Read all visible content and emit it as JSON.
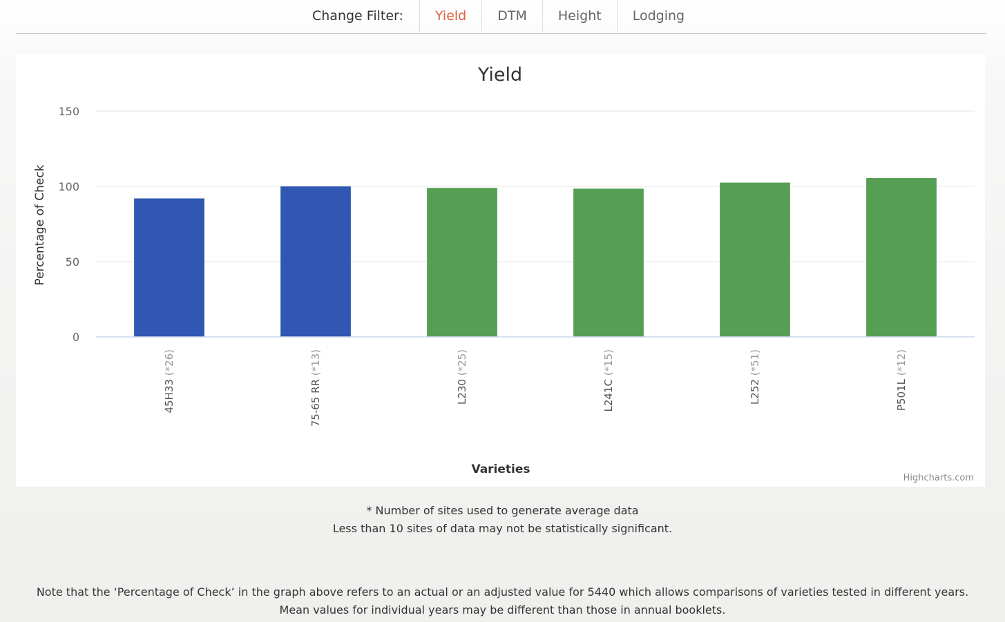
{
  "filter": {
    "label": "Change Filter:",
    "tabs": [
      {
        "label": "Yield",
        "active": true
      },
      {
        "label": "DTM",
        "active": false
      },
      {
        "label": "Height",
        "active": false
      },
      {
        "label": "Lodging",
        "active": false
      }
    ],
    "active_color": "#e0603f"
  },
  "chart_data": {
    "type": "bar",
    "title": "Yield",
    "xlabel": "Varieties",
    "ylabel": "Percentage of Check",
    "ylim": [
      0,
      150
    ],
    "yticks": [
      0,
      50,
      100,
      150
    ],
    "grid": true,
    "legend": "none",
    "categories": [
      {
        "name": "45H33",
        "sites": "(*26)",
        "value": 92,
        "color": "#3058b3"
      },
      {
        "name": "75-65 RR",
        "sites": "(*13)",
        "value": 100,
        "color": "#3058b3"
      },
      {
        "name": "L230",
        "sites": "(*25)",
        "value": 99,
        "color": "#559e53"
      },
      {
        "name": "L241C",
        "sites": "(*15)",
        "value": 98.5,
        "color": "#559e53"
      },
      {
        "name": "L252",
        "sites": "(*51)",
        "value": 102.5,
        "color": "#559e53"
      },
      {
        "name": "P501L",
        "sites": "(*12)",
        "value": 105.5,
        "color": "#559e53"
      }
    ],
    "credits": "Highcharts.com"
  },
  "footnotes": {
    "line1": "* Number of sites used to generate average data",
    "line2": "Less than 10 sites of data may not be statistically significant."
  },
  "note": {
    "text": "Note that the ‘Percentage of Check’ in the graph above refers to an actual or an adjusted value for 5440 which allows comparisons of varieties tested in different years. Mean values for individual years may be different than those in annual booklets."
  }
}
